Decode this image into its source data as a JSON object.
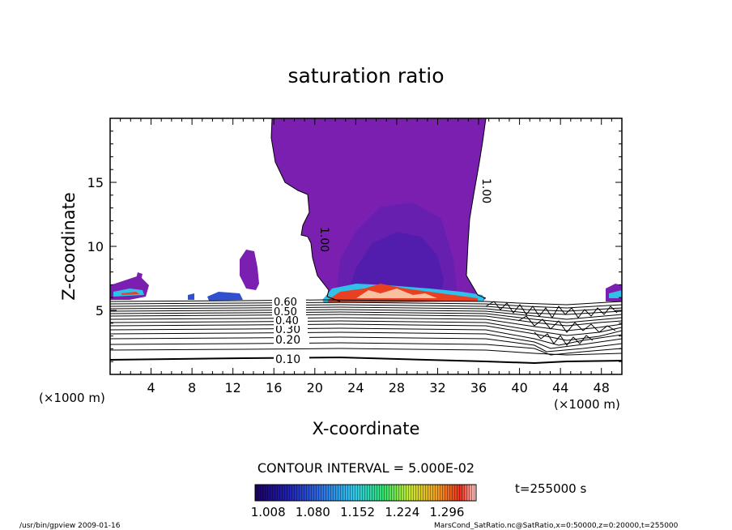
{
  "chart_data": {
    "type": "contour",
    "title": "saturation ratio",
    "xlabel": "X-coordinate",
    "ylabel": "Z-coordinate",
    "x_unit_left": "(×1000 m)",
    "x_unit_right": "(×1000 m)",
    "xlim": [
      0,
      50
    ],
    "ylim": [
      0,
      20
    ],
    "x_ticks": [
      "4",
      "8",
      "12",
      "16",
      "20",
      "24",
      "28",
      "32",
      "36",
      "40",
      "44",
      "48"
    ],
    "y_ticks": [
      "5",
      "10",
      "15"
    ],
    "contour_labels": [
      "0.10",
      "0.20",
      "0.30",
      "0.40",
      "0.50",
      "0.60",
      "1.00",
      "1.00"
    ],
    "contour_interval_text": "CONTOUR INTERVAL = 5.000E-02",
    "time_text": "t=255000 s",
    "colorbar": {
      "ticks": [
        "1.008",
        "1.080",
        "1.152",
        "1.224",
        "1.296"
      ],
      "colors": [
        "#1a0060",
        "#2020b0",
        "#2f6fe0",
        "#2fc8e8",
        "#30e070",
        "#c8e830",
        "#f0a020",
        "#e83020",
        "#ffffff"
      ]
    },
    "grid": false,
    "fill_color": "#7a1fb0"
  },
  "footer": {
    "left": "/usr/bin/gpview   2009-01-16",
    "right": "MarsCond_SatRatio.nc@SatRatio,x=0:50000,z=0:20000,t=255000"
  }
}
